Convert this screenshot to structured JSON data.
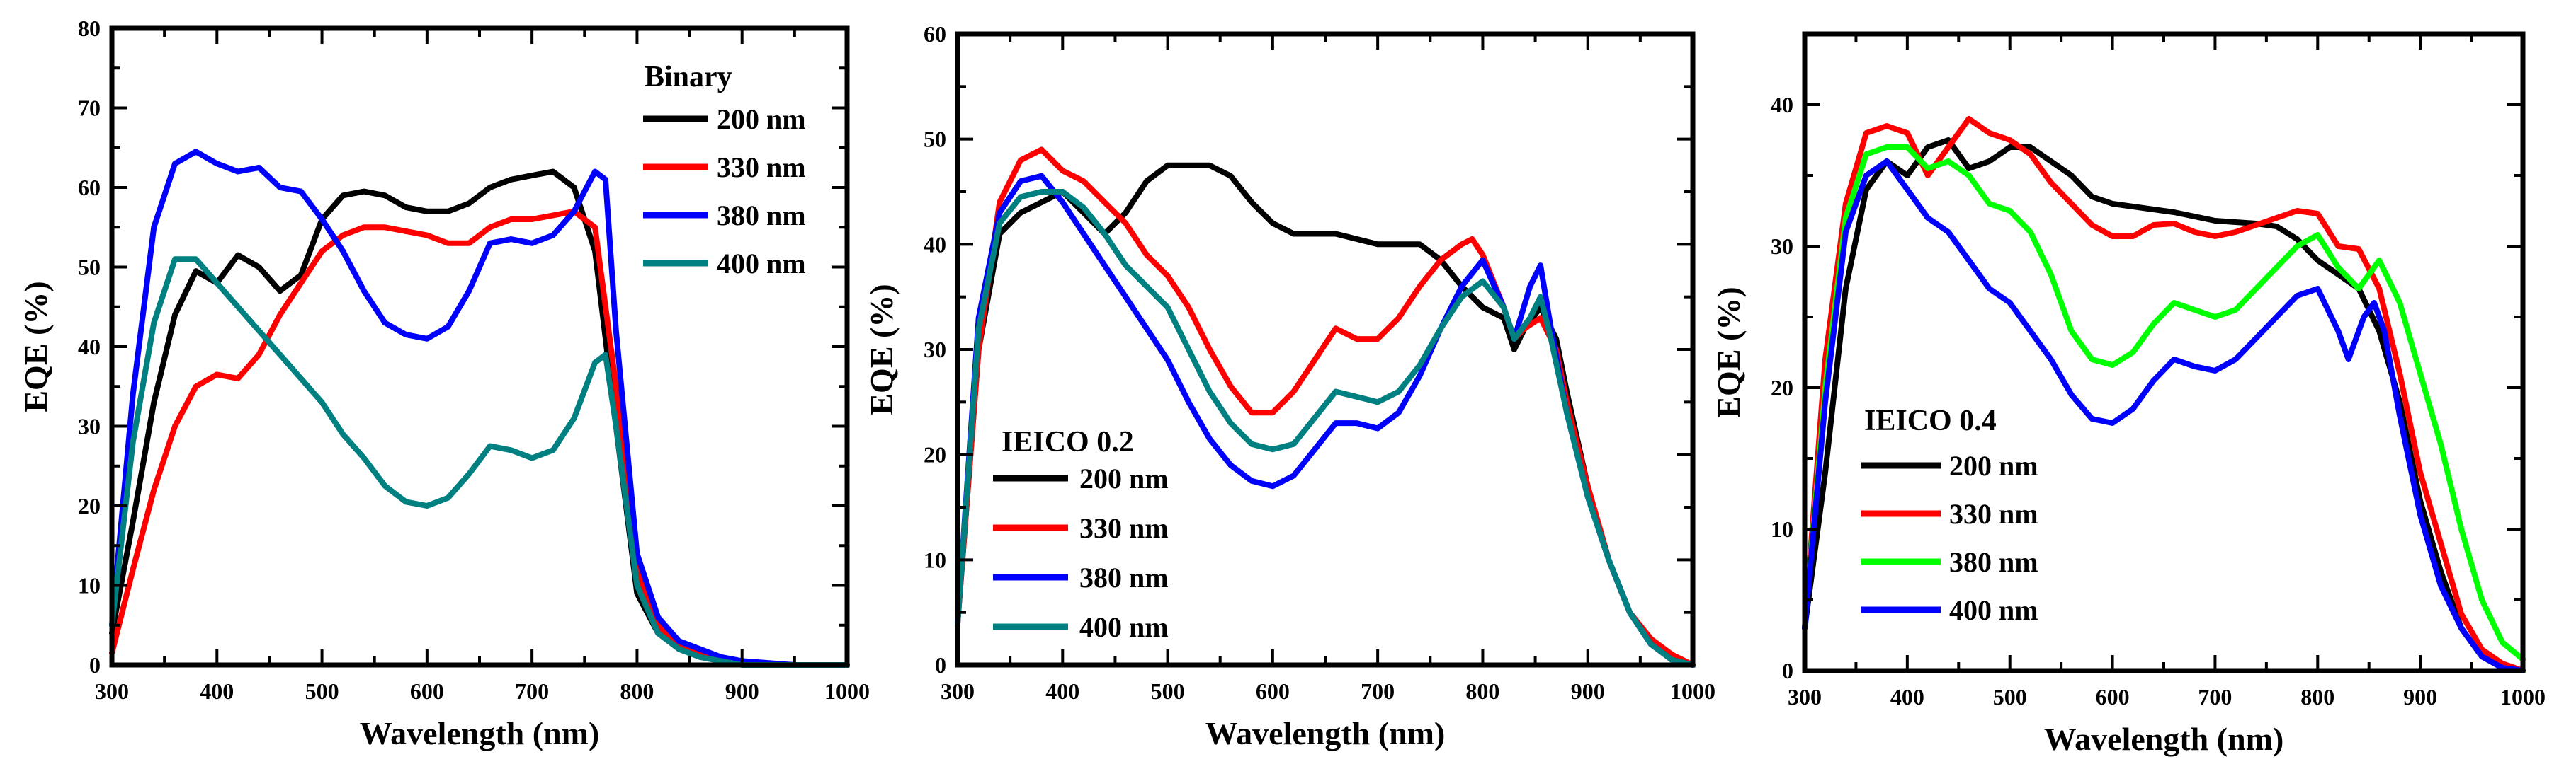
{
  "chart_data": [
    {
      "type": "line",
      "xlabel": "Wavelength (nm)",
      "ylabel": "EQE (%)",
      "xlim": [
        300,
        1000
      ],
      "ylim": [
        0,
        80
      ],
      "xticks": [
        300,
        400,
        500,
        600,
        700,
        800,
        900,
        1000
      ],
      "yticks": [
        0,
        10,
        20,
        30,
        40,
        50,
        60,
        70,
        80
      ],
      "legend_title": "Binary",
      "legend_position": "top-right",
      "series": [
        {
          "name": "200 nm",
          "color": "#000000",
          "x": [
            300,
            320,
            340,
            360,
            380,
            400,
            420,
            440,
            460,
            480,
            500,
            520,
            540,
            560,
            580,
            600,
            620,
            640,
            660,
            680,
            700,
            720,
            740,
            760,
            780,
            800,
            820,
            840,
            860,
            880,
            900,
            950,
            1000
          ],
          "y": [
            4,
            18,
            33,
            44,
            49.5,
            48,
            51.5,
            50,
            47,
            49,
            56,
            59,
            59.5,
            59,
            57.5,
            57,
            57,
            58,
            60,
            61,
            61.5,
            62,
            60,
            52,
            30,
            9,
            4,
            2,
            1,
            0.5,
            0.2,
            0,
            0
          ]
        },
        {
          "name": "330 nm",
          "color": "#ff0000",
          "x": [
            300,
            320,
            340,
            360,
            380,
            400,
            420,
            440,
            460,
            480,
            500,
            520,
            540,
            560,
            580,
            600,
            620,
            640,
            660,
            680,
            700,
            720,
            740,
            760,
            780,
            800,
            820,
            840,
            860,
            880,
            900,
            950,
            1000
          ],
          "y": [
            1.5,
            12,
            22,
            30,
            35,
            36.5,
            36,
            39,
            44,
            48,
            52,
            54,
            55,
            55,
            54.5,
            54,
            53,
            53,
            55,
            56,
            56,
            56.5,
            57,
            55,
            35,
            12,
            5,
            2.5,
            1.5,
            0.8,
            0.3,
            0,
            0
          ]
        },
        {
          "name": "380 nm",
          "color": "#0000ff",
          "x": [
            300,
            320,
            340,
            360,
            380,
            400,
            420,
            440,
            460,
            480,
            500,
            520,
            540,
            560,
            580,
            600,
            620,
            640,
            660,
            680,
            700,
            720,
            740,
            760,
            770,
            780,
            800,
            820,
            840,
            860,
            880,
            900,
            950,
            1000
          ],
          "y": [
            5,
            34,
            55,
            63,
            64.5,
            63,
            62,
            62.5,
            60,
            59.5,
            56,
            52,
            47,
            43,
            41.5,
            41,
            42.5,
            47,
            53,
            53.5,
            53,
            54,
            57,
            62,
            61,
            42,
            14,
            6,
            3,
            2,
            1,
            0.5,
            0,
            0
          ]
        },
        {
          "name": "400 nm",
          "color": "#008080",
          "x": [
            300,
            320,
            340,
            360,
            380,
            400,
            420,
            440,
            460,
            480,
            500,
            520,
            540,
            560,
            580,
            600,
            620,
            640,
            660,
            680,
            700,
            720,
            740,
            760,
            770,
            780,
            800,
            820,
            840,
            860,
            880,
            900,
            950,
            1000
          ],
          "y": [
            5,
            28,
            43,
            51,
            51,
            48,
            45,
            42,
            39,
            36,
            33,
            29,
            26,
            22.5,
            20.5,
            20,
            21,
            24,
            27.5,
            27,
            26,
            27,
            31,
            38,
            39,
            30,
            10,
            4,
            2,
            1,
            0.5,
            0,
            0,
            0
          ]
        }
      ]
    },
    {
      "type": "line",
      "xlabel": "Wavelength (nm)",
      "ylabel": "EQE (%)",
      "xlim": [
        300,
        1000
      ],
      "ylim": [
        0,
        60
      ],
      "xticks": [
        300,
        400,
        500,
        600,
        700,
        800,
        900,
        1000
      ],
      "yticks": [
        0,
        10,
        20,
        30,
        40,
        50,
        60
      ],
      "legend_title": "IEICO 0.2",
      "legend_position": "center-left",
      "series": [
        {
          "name": "200 nm",
          "color": "#000000",
          "x": [
            300,
            320,
            340,
            360,
            380,
            400,
            420,
            440,
            460,
            480,
            500,
            520,
            540,
            560,
            580,
            600,
            620,
            640,
            660,
            680,
            700,
            720,
            740,
            760,
            780,
            800,
            820,
            830,
            840,
            855,
            870,
            880,
            900,
            920,
            940,
            960,
            980,
            1000
          ],
          "y": [
            4,
            30,
            41,
            43,
            44,
            45,
            43,
            41,
            43,
            46,
            47.5,
            47.5,
            47.5,
            46.5,
            44,
            42,
            41,
            41,
            41,
            40.5,
            40,
            40,
            40,
            38.5,
            36,
            34,
            33,
            30,
            32,
            34,
            31,
            26,
            17,
            10,
            5,
            2,
            0.5,
            0
          ]
        },
        {
          "name": "330 nm",
          "color": "#ff0000",
          "x": [
            300,
            320,
            340,
            360,
            380,
            400,
            420,
            440,
            460,
            480,
            500,
            520,
            540,
            560,
            580,
            600,
            620,
            640,
            660,
            680,
            700,
            720,
            740,
            760,
            780,
            790,
            800,
            820,
            830,
            840,
            855,
            870,
            880,
            900,
            920,
            940,
            960,
            980,
            1000
          ],
          "y": [
            4,
            30,
            44,
            48,
            49,
            47,
            46,
            44,
            42,
            39,
            37,
            34,
            30,
            26.5,
            24,
            24,
            26,
            29,
            32,
            31,
            31,
            33,
            36,
            38.5,
            40,
            40.5,
            39,
            34,
            31,
            32,
            33,
            30,
            25,
            17,
            10,
            5,
            2.5,
            1,
            0
          ]
        },
        {
          "name": "380 nm",
          "color": "#0000ff",
          "x": [
            300,
            320,
            340,
            360,
            380,
            400,
            420,
            440,
            460,
            480,
            500,
            520,
            540,
            560,
            580,
            600,
            620,
            640,
            660,
            680,
            700,
            720,
            740,
            760,
            780,
            800,
            820,
            830,
            845,
            855,
            865,
            880,
            900,
            920,
            940,
            960,
            980,
            1000
          ],
          "y": [
            4,
            33,
            43,
            46,
            46.5,
            44,
            41,
            38,
            35,
            32,
            29,
            25,
            21.5,
            19,
            17.5,
            17,
            18,
            20.5,
            23,
            23,
            22.5,
            24,
            27.5,
            32,
            36,
            38.5,
            34,
            31,
            36,
            38,
            32,
            24,
            16,
            10,
            5,
            2,
            0.5,
            0
          ]
        },
        {
          "name": "400 nm",
          "color": "#008080",
          "x": [
            300,
            320,
            340,
            360,
            380,
            400,
            420,
            440,
            460,
            480,
            500,
            520,
            540,
            560,
            580,
            600,
            620,
            640,
            660,
            680,
            700,
            720,
            740,
            760,
            780,
            800,
            820,
            830,
            845,
            855,
            865,
            880,
            900,
            920,
            940,
            960,
            980,
            1000
          ],
          "y": [
            4,
            32,
            42,
            44.5,
            45,
            45,
            43.5,
            41,
            38,
            36,
            34,
            30,
            26,
            23,
            21,
            20.5,
            21,
            23.5,
            26,
            25.5,
            25,
            26,
            28.5,
            32,
            35,
            36.5,
            34,
            31,
            33,
            35,
            31,
            24,
            16,
            10,
            5,
            2,
            0.5,
            0
          ]
        }
      ]
    },
    {
      "type": "line",
      "xlabel": "Wavelength (nm)",
      "ylabel": "EQE (%)",
      "xlim": [
        300,
        1000
      ],
      "ylim": [
        0,
        45
      ],
      "xticks": [
        300,
        400,
        500,
        600,
        700,
        800,
        900,
        1000
      ],
      "yticks": [
        0,
        10,
        20,
        30,
        40
      ],
      "legend_title": "IEICO 0.4",
      "legend_position": "center-left",
      "series": [
        {
          "name": "200 nm",
          "color": "#000000",
          "x": [
            300,
            320,
            340,
            360,
            380,
            400,
            420,
            440,
            460,
            480,
            500,
            520,
            540,
            560,
            580,
            600,
            620,
            640,
            660,
            680,
            700,
            720,
            740,
            760,
            780,
            800,
            820,
            840,
            860,
            880,
            900,
            920,
            940,
            960,
            980,
            1000
          ],
          "y": [
            3,
            14,
            27,
            34,
            36,
            35,
            37,
            37.5,
            35.5,
            36,
            37,
            37,
            36,
            35,
            33.5,
            33,
            32.8,
            32.6,
            32.4,
            32.1,
            31.8,
            31.7,
            31.6,
            31.4,
            30.5,
            29,
            28,
            27,
            24,
            19,
            12,
            7,
            3,
            1,
            0.2,
            0
          ]
        },
        {
          "name": "330 nm",
          "color": "#ff0000",
          "x": [
            300,
            320,
            340,
            360,
            380,
            400,
            420,
            440,
            460,
            480,
            500,
            520,
            540,
            560,
            580,
            600,
            620,
            640,
            660,
            680,
            700,
            720,
            740,
            760,
            780,
            800,
            820,
            840,
            860,
            880,
            900,
            920,
            940,
            960,
            980,
            1000
          ],
          "y": [
            3,
            22,
            33,
            38,
            38.5,
            38,
            35,
            37,
            39,
            38,
            37.5,
            36.5,
            34.5,
            33,
            31.5,
            30.7,
            30.7,
            31.5,
            31.6,
            31,
            30.7,
            31,
            31.5,
            32,
            32.5,
            32.3,
            30,
            29.8,
            27,
            21,
            14,
            9,
            4,
            1.5,
            0.5,
            0
          ]
        },
        {
          "name": "380 nm",
          "color": "#00ff00",
          "x": [
            300,
            320,
            340,
            360,
            380,
            400,
            420,
            440,
            460,
            480,
            500,
            520,
            540,
            560,
            580,
            600,
            620,
            640,
            660,
            680,
            700,
            720,
            740,
            760,
            780,
            800,
            820,
            840,
            860,
            880,
            900,
            920,
            940,
            960,
            980,
            1000
          ],
          "y": [
            3,
            20,
            32,
            36.5,
            37,
            37,
            35.5,
            36,
            35,
            33,
            32.5,
            31,
            28,
            24,
            22,
            21.6,
            22.5,
            24.5,
            26,
            25.5,
            25,
            25.5,
            27,
            28.5,
            30,
            30.8,
            28.5,
            27,
            29,
            26,
            21,
            16,
            10,
            5,
            2,
            0.8
          ]
        },
        {
          "name": "400 nm",
          "color": "#0000ff",
          "x": [
            300,
            320,
            340,
            360,
            380,
            400,
            420,
            440,
            460,
            480,
            500,
            520,
            540,
            560,
            580,
            600,
            620,
            640,
            660,
            680,
            700,
            720,
            740,
            760,
            780,
            800,
            820,
            830,
            845,
            855,
            865,
            880,
            900,
            920,
            940,
            960,
            980,
            1000
          ],
          "y": [
            3,
            19,
            31,
            35,
            36,
            34,
            32,
            31,
            29,
            27,
            26,
            24,
            22,
            19.5,
            17.8,
            17.5,
            18.5,
            20.5,
            22,
            21.5,
            21.2,
            22,
            23.5,
            25,
            26.5,
            27,
            24,
            22,
            25,
            26,
            24,
            18,
            11,
            6,
            3,
            1,
            0.2,
            0
          ]
        }
      ]
    }
  ]
}
